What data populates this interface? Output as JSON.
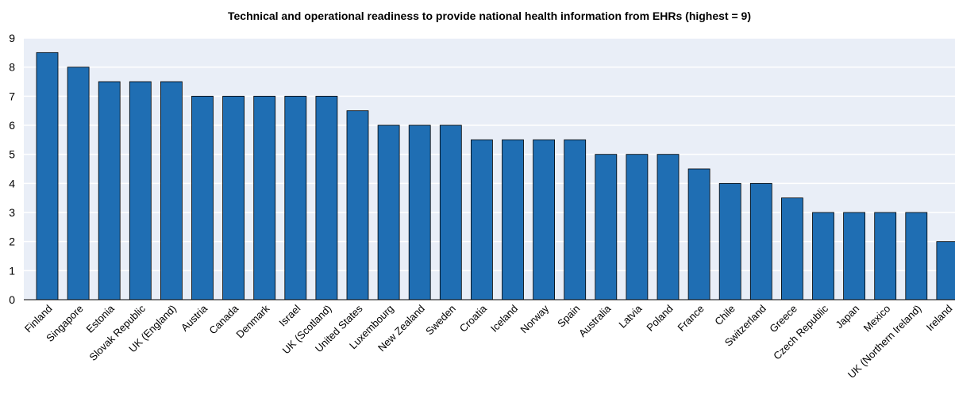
{
  "chart_data": {
    "type": "bar",
    "title": "Technical and operational readiness to provide national health information from EHRs (highest = 9)",
    "xlabel": "",
    "ylabel": "",
    "ylim": [
      0,
      9
    ],
    "yticks": [
      0,
      1,
      2,
      3,
      4,
      5,
      6,
      7,
      8,
      9
    ],
    "grid": true,
    "bar_color": "#1f6eb3",
    "plot_background": "#e9eef7",
    "gridline_color": "#ffffff",
    "categories": [
      "Finland",
      "Singapore",
      "Estonia",
      "Slovak Republic",
      "UK (England)",
      "Austria",
      "Canada",
      "Denmark",
      "Israel",
      "UK (Scotland)",
      "United States",
      "Luxembourg",
      "New Zealand",
      "Sweden",
      "Croatia",
      "Iceland",
      "Norway",
      "Spain",
      "Australia",
      "Latvia",
      "Poland",
      "France",
      "Chile",
      "Switzerland",
      "Greece",
      "Czech Republic",
      "Japan",
      "Mexico",
      "UK (Northern Ireland)",
      "Ireland"
    ],
    "values": [
      8.5,
      8,
      7.5,
      7.5,
      7.5,
      7,
      7,
      7,
      7,
      7,
      6.5,
      6,
      6,
      6,
      5.5,
      5.5,
      5.5,
      5.5,
      5,
      5,
      5,
      4.5,
      4,
      4,
      3.5,
      3,
      3,
      3,
      3,
      2
    ]
  }
}
